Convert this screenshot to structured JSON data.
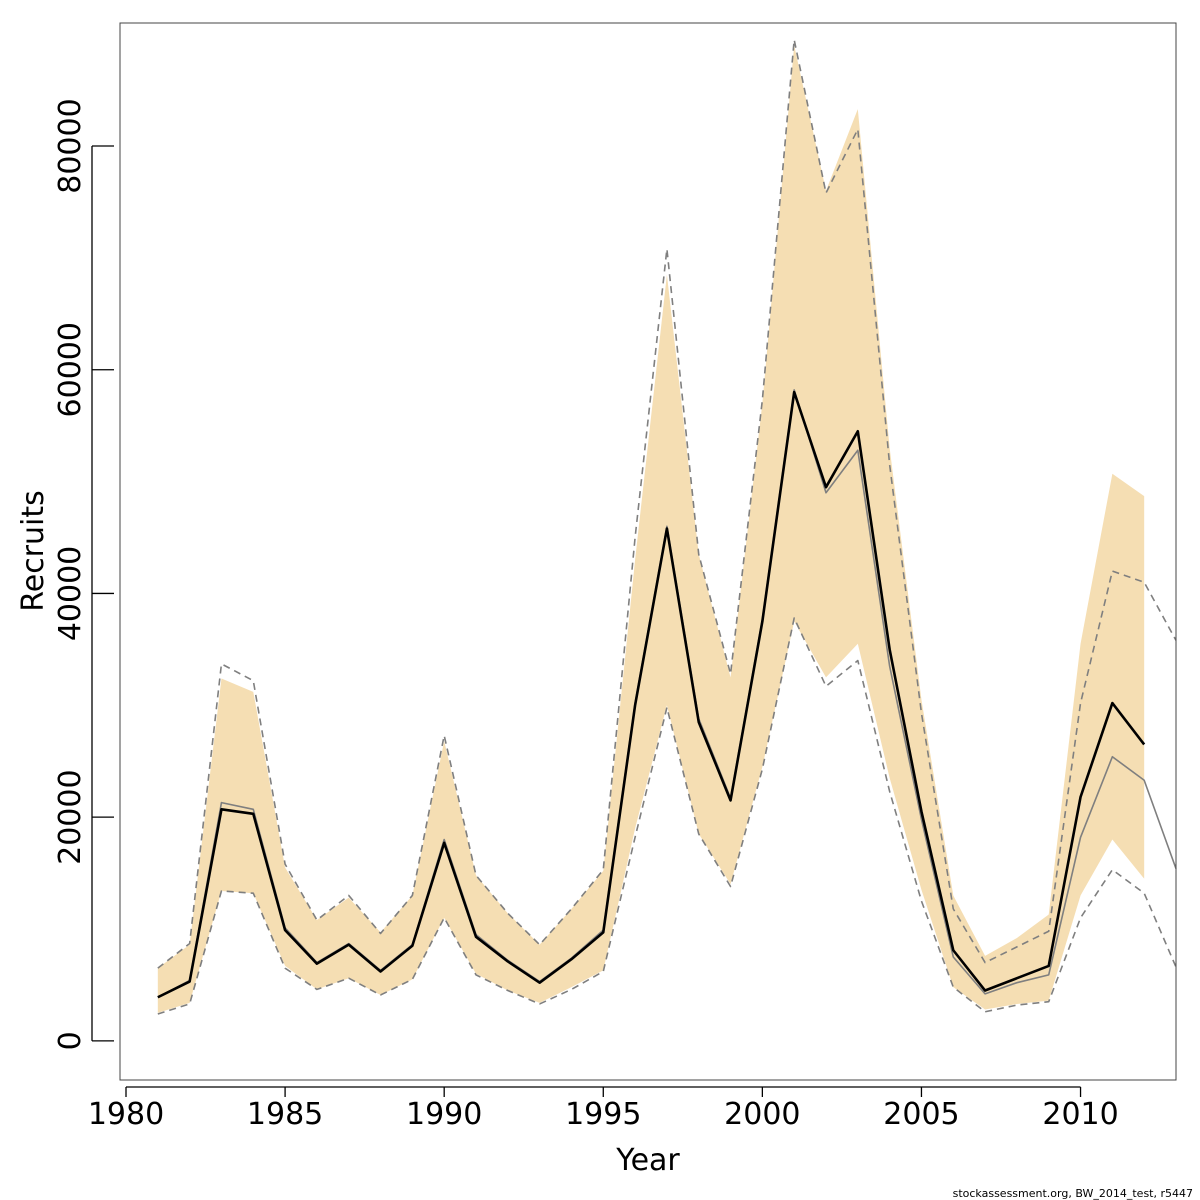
{
  "chart_data": {
    "type": "line",
    "xlabel": "Year",
    "ylabel": "Recruits",
    "xlim": [
      1980,
      2013
    ],
    "ylim": [
      -3500,
      91000
    ],
    "x_ticks": [
      1980,
      1985,
      1990,
      1995,
      2000,
      2005,
      2010
    ],
    "x_tick_labels": [
      "1980",
      "1985",
      "1990",
      "1995",
      "2000",
      "2005",
      "2010"
    ],
    "y_ticks": [
      0,
      20000,
      40000,
      60000,
      80000
    ],
    "y_tick_labels": [
      "0",
      "20000",
      "40000",
      "60000",
      "80000"
    ],
    "grid": false,
    "band": {
      "color": "#f5deb3",
      "x": [
        1981,
        1982,
        1983,
        1984,
        1985,
        1986,
        1987,
        1988,
        1989,
        1990,
        1991,
        1992,
        1993,
        1994,
        1995,
        1996,
        1997,
        1998,
        1999,
        2000,
        2001,
        2002,
        2003,
        2004,
        2005,
        2006,
        2007,
        2008,
        2009,
        2010,
        2011,
        2012
      ],
      "upper": [
        6500,
        8600,
        32400,
        31200,
        15500,
        10800,
        12800,
        9700,
        13000,
        26800,
        14800,
        11400,
        8600,
        11800,
        15200,
        43000,
        68500,
        43500,
        32500,
        57000,
        89000,
        76000,
        83300,
        53000,
        30500,
        13000,
        7600,
        9200,
        11300,
        35500,
        50700,
        48700
      ],
      "lower": [
        2500,
        3400,
        13400,
        13200,
        6700,
        4600,
        5600,
        4100,
        5500,
        11000,
        6000,
        4500,
        3400,
        4800,
        6300,
        19000,
        30000,
        18500,
        14000,
        24500,
        37500,
        32500,
        35500,
        23500,
        13500,
        4800,
        2800,
        3300,
        3600,
        13000,
        18000,
        14500
      ]
    },
    "series": [
      {
        "color": "#000000",
        "style": "solid",
        "x": [
          1981,
          1982,
          1983,
          1984,
          1985,
          1986,
          1987,
          1988,
          1989,
          1990,
          1991,
          1992,
          1993,
          1994,
          1995,
          1996,
          1997,
          1998,
          1999,
          2000,
          2001,
          2002,
          2003,
          2004,
          2005,
          2006,
          2007,
          2008,
          2009,
          2010,
          2011,
          2012
        ],
        "values": [
          3900,
          5300,
          20700,
          20300,
          9900,
          6900,
          8600,
          6200,
          8500,
          17700,
          9300,
          7100,
          5200,
          7300,
          9700,
          30000,
          45800,
          28500,
          21500,
          37500,
          58000,
          49500,
          54500,
          35000,
          20500,
          8100,
          4500,
          5600,
          6700,
          21800,
          30200,
          26500
        ]
      },
      {
        "color": "#7f7f7f",
        "style": "solid",
        "x": [
          1981,
          1982,
          1983,
          1984,
          1985,
          1986,
          1987,
          1988,
          1989,
          1990,
          1991,
          1992,
          1993,
          1994,
          1995,
          1996,
          1997,
          1998,
          1999,
          2000,
          2001,
          2002,
          2003,
          2004,
          2005,
          2006,
          2007,
          2008,
          2009,
          2010,
          2011,
          2012,
          2013
        ],
        "values": [
          3900,
          5400,
          21300,
          20700,
          10100,
          7000,
          8700,
          6300,
          8600,
          18000,
          9500,
          7200,
          5300,
          7400,
          9900,
          30200,
          46000,
          28800,
          21700,
          37700,
          58200,
          49000,
          52800,
          33500,
          19800,
          7500,
          4200,
          5200,
          5900,
          18200,
          25400,
          23300,
          15400
        ]
      },
      {
        "color": "#7f7f7f",
        "style": "dashed",
        "x": [
          1981,
          1982,
          1983,
          1984,
          1985,
          1986,
          1987,
          1988,
          1989,
          1990,
          1991,
          1992,
          1993,
          1994,
          1995,
          1996,
          1997,
          1998,
          1999,
          2000,
          2001,
          2002,
          2003,
          2004,
          2005,
          2006,
          2007,
          2008,
          2009,
          2010,
          2011,
          2012,
          2013
        ],
        "values": [
          6500,
          8700,
          33700,
          32200,
          15800,
          10800,
          13000,
          9600,
          13000,
          27300,
          14800,
          11400,
          8600,
          11800,
          15300,
          45000,
          70800,
          43500,
          32800,
          57300,
          89500,
          75800,
          81500,
          51500,
          29300,
          11800,
          7000,
          8400,
          9800,
          30200,
          42000,
          41000,
          35800
        ]
      },
      {
        "color": "#7f7f7f",
        "style": "dashed",
        "x": [
          1981,
          1982,
          1983,
          1984,
          1985,
          1986,
          1987,
          1988,
          1989,
          1990,
          1991,
          1992,
          1993,
          1994,
          1995,
          1996,
          1997,
          1998,
          1999,
          2000,
          2001,
          2002,
          2003,
          2004,
          2005,
          2006,
          2007,
          2008,
          2009,
          2010,
          2011,
          2012,
          2013
        ],
        "values": [
          2400,
          3300,
          13400,
          13200,
          6500,
          4600,
          5600,
          4100,
          5500,
          11000,
          5900,
          4500,
          3300,
          4600,
          6200,
          18200,
          29800,
          18500,
          13800,
          24300,
          37800,
          31700,
          34000,
          22300,
          12500,
          4800,
          2600,
          3200,
          3500,
          11000,
          15300,
          13200,
          6600
        ]
      }
    ]
  },
  "footer": "stockassessment.org, BW_2014_test, r5447"
}
